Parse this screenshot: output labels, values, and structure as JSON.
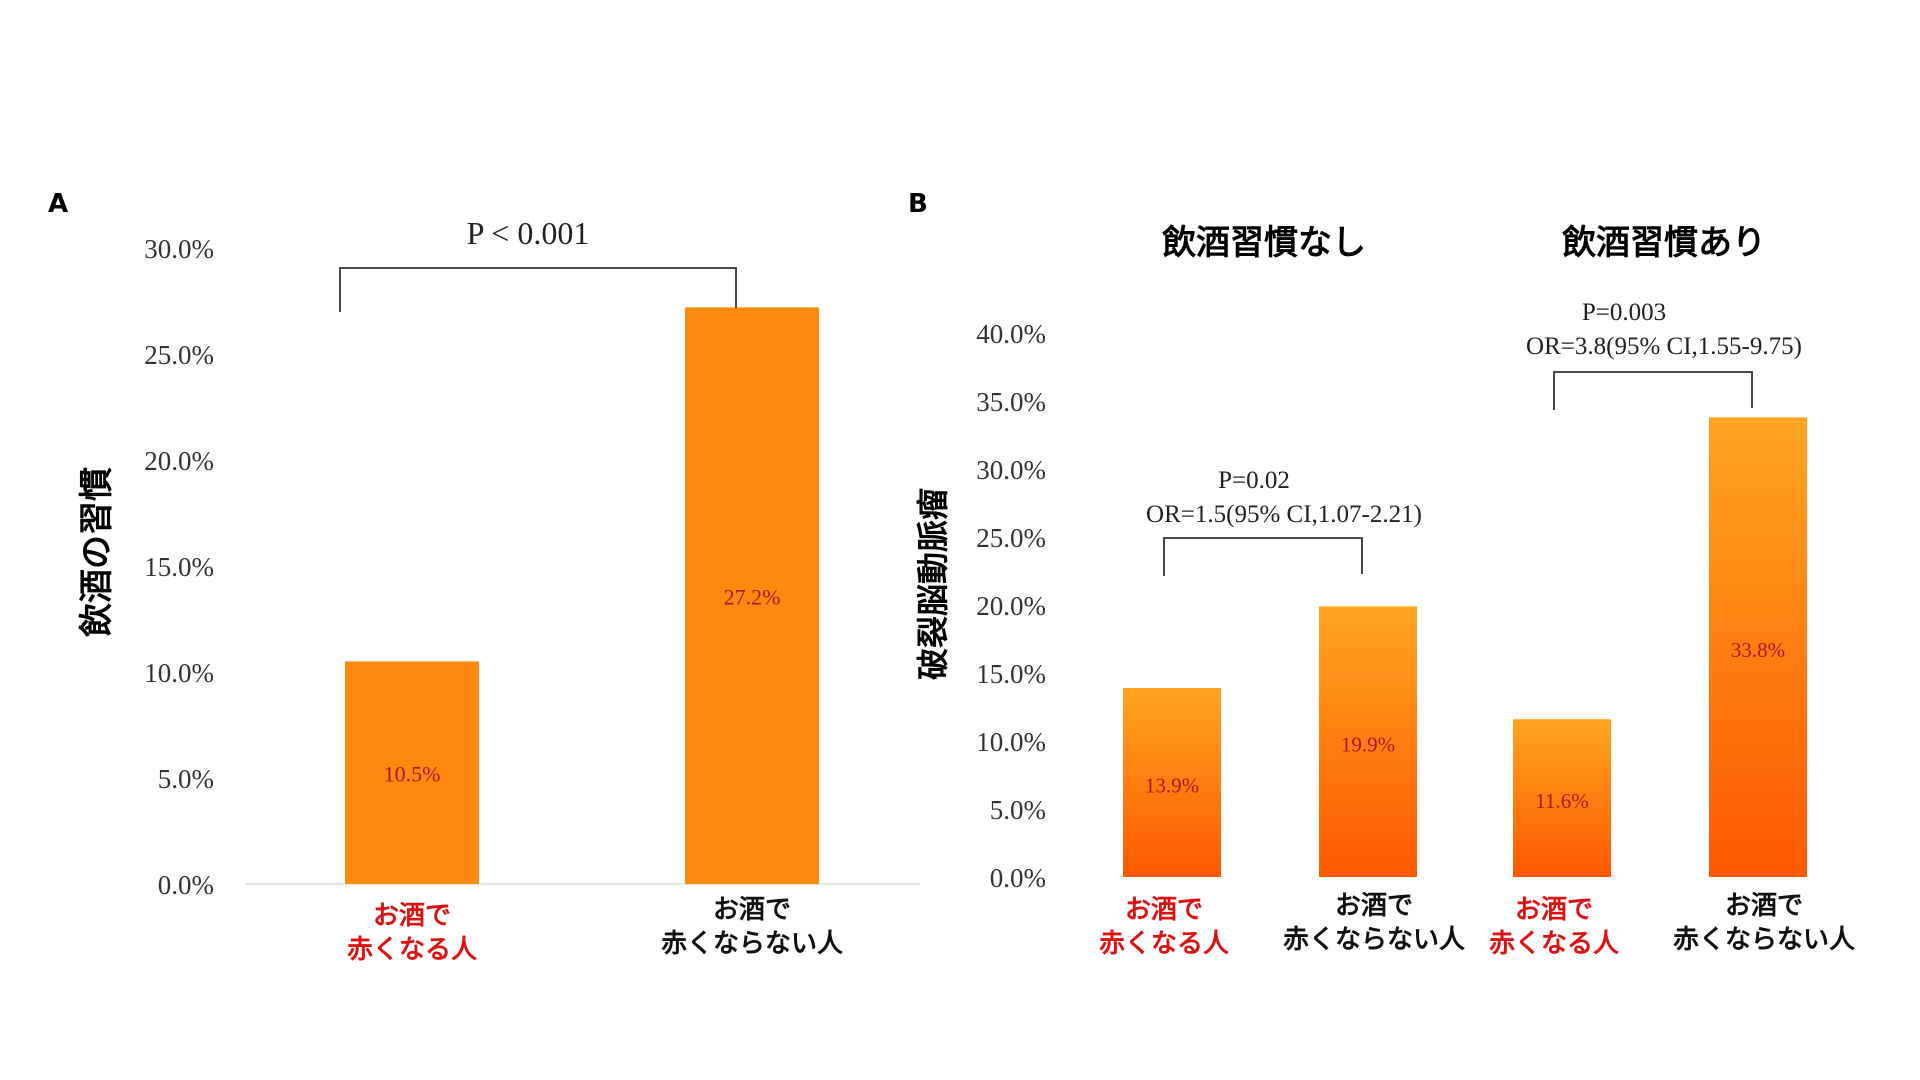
{
  "chart_data": [
    {
      "type": "bar",
      "panel_label": "A",
      "ylabel": "飲酒の習慣",
      "ylim": [
        0,
        30
      ],
      "yticks": [
        "0.0%",
        "5.0%",
        "10.0%",
        "15.0%",
        "20.0%",
        "25.0%",
        "30.0%"
      ],
      "categories": [
        {
          "line1": "お酒で",
          "line2": "赤くなる人",
          "color": "#dd1111"
        },
        {
          "line1": "お酒で",
          "line2": "赤くならない人",
          "color": "#111111"
        }
      ],
      "values": [
        10.5,
        27.2
      ],
      "value_labels": [
        "10.5%",
        "27.2%"
      ],
      "annotation": {
        "text": "P < 0.001"
      }
    },
    {
      "type": "bar",
      "panel_label": "B",
      "ylabel": "破裂脳動脈瘤",
      "ylim": [
        0,
        40
      ],
      "yticks": [
        "0.0%",
        "5.0%",
        "10.0%",
        "15.0%",
        "20.0%",
        "25.0%",
        "30.0%",
        "35.0%",
        "40.0%"
      ],
      "groups": [
        {
          "title": "飲酒習慣なし",
          "categories": [
            {
              "line1": "お酒で",
              "line2": "赤くなる人",
              "color": "#dd1111"
            },
            {
              "line1": "お酒で",
              "line2": "赤くならない人",
              "color": "#111111"
            }
          ],
          "values": [
            13.9,
            19.9
          ],
          "value_labels": [
            "13.9%",
            "19.9%"
          ],
          "annotation": {
            "p": "P=0.02",
            "or": "OR=1.5(95% CI,1.07-2.21)"
          }
        },
        {
          "title": "飲酒習慣あり",
          "categories": [
            {
              "line1": "お酒で",
              "line2": "赤くなる人",
              "color": "#dd1111"
            },
            {
              "line1": "お酒で",
              "line2": "赤くならない人",
              "color": "#111111"
            }
          ],
          "values": [
            11.6,
            33.8
          ],
          "value_labels": [
            "11.6%",
            "33.8%"
          ],
          "annotation": {
            "p": "P=0.003",
            "or": "OR=3.8(95% CI,1.55-9.75)"
          }
        }
      ]
    }
  ],
  "colors": {
    "bar_top": "#ffa31f",
    "bar_bottom": "#ff5a00",
    "bar_flat": "#ff8a0d",
    "value_text": "#b0121e"
  }
}
